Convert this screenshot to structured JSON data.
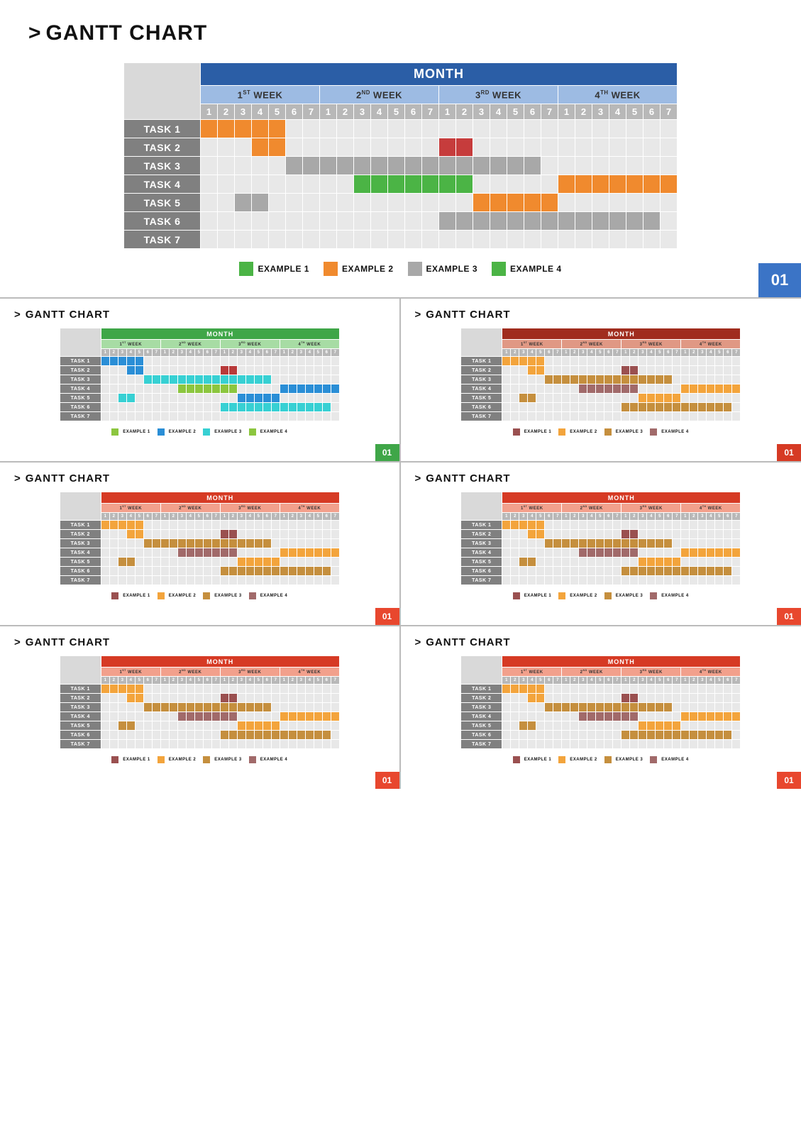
{
  "page_title": "GANTT CHART",
  "caret": ">",
  "month_label": "MONTH",
  "badge_label": "01",
  "task_labels": [
    "TASK 1",
    "TASK 2",
    "TASK 3",
    "TASK 4",
    "TASK 5",
    "TASK 6",
    "TASK 7"
  ],
  "weeks": [
    {
      "ord": "1",
      "sup": "ST",
      "label": "WEEK"
    },
    {
      "ord": "2",
      "sup": "ND",
      "label": "WEEK"
    },
    {
      "ord": "3",
      "sup": "RD",
      "label": "WEEK"
    },
    {
      "ord": "4",
      "sup": "TH",
      "label": "WEEK"
    }
  ],
  "days": [
    "1",
    "2",
    "3",
    "4",
    "5",
    "6",
    "7"
  ],
  "bars_pattern_A": {
    "rows": [
      [
        [
          1,
          5,
          "c2"
        ]
      ],
      [
        [
          4,
          5,
          "c2"
        ],
        [
          15,
          16,
          "c1"
        ]
      ],
      [
        [
          6,
          20,
          "c3"
        ]
      ],
      [
        [
          10,
          16,
          "c4"
        ],
        [
          22,
          28,
          "c2"
        ]
      ],
      [
        [
          3,
          4,
          "c3"
        ],
        [
          17,
          21,
          "c2"
        ]
      ],
      [
        [
          15,
          27,
          "c3"
        ]
      ],
      []
    ]
  },
  "variants": {
    "main": {
      "month_header_bg": "#2b5ea6",
      "week_header_bg": "#9dbbe3",
      "day_header_bg": "#b8b8b8",
      "badge_bg": "#3b74c6",
      "colors": {
        "c1": "#c63c3c",
        "c2": "#f08a2e",
        "c3": "#a8a8a8",
        "c4": "#4bb445"
      },
      "legend_colors": [
        "#4bb445",
        "#f08a2e",
        "#a8a8a8",
        "#4bb445"
      ],
      "legend_labels": [
        "EXAMPLE 1",
        "EXAMPLE 2",
        "EXAMPLE 3",
        "EXAMPLE 4"
      ]
    },
    "green": {
      "month_header_bg": "#3fa648",
      "week_header_bg": "#a7dca4",
      "day_header_bg": "#b8b8b8",
      "badge_bg": "#3fa648",
      "colors": {
        "c1": "#b83a3a",
        "c2": "#2a8ed6",
        "c3": "#37d0d3",
        "c4": "#8cc63f"
      },
      "legend_colors": [
        "#8cc63f",
        "#2a8ed6",
        "#37d0d3",
        "#8cc63f"
      ],
      "legend_labels": [
        "EXAMPLE 1",
        "EXAMPLE 2",
        "EXAMPLE 3",
        "EXAMPLE 4"
      ]
    },
    "dark_red": {
      "month_header_bg": "#a02c1e",
      "week_header_bg": "#e09884",
      "day_header_bg": "#b8b8b8",
      "badge_bg": "#d63a24",
      "colors": {
        "c1": "#9a5050",
        "c2": "#f3a43c",
        "c3": "#c58f3e",
        "c4": "#a16a6a"
      },
      "legend_colors": [
        "#9a5050",
        "#f3a43c",
        "#c58f3e",
        "#a16a6a"
      ],
      "legend_labels": [
        "EXAMPLE 1",
        "EXAMPLE 2",
        "EXAMPLE 3",
        "EXAMPLE 4"
      ]
    },
    "red": {
      "month_header_bg": "#d63a24",
      "week_header_bg": "#f2a08c",
      "day_header_bg": "#b8b8b8",
      "badge_bg": "#e8472e",
      "colors": {
        "c1": "#9a5050",
        "c2": "#f3a43c",
        "c3": "#c58f3e",
        "c4": "#a16a6a"
      },
      "legend_colors": [
        "#9a5050",
        "#f3a43c",
        "#c58f3e",
        "#a16a6a"
      ],
      "legend_labels": [
        "EXAMPLE 1",
        "EXAMPLE 2",
        "EXAMPLE 3",
        "EXAMPLE 4"
      ]
    }
  },
  "thumbs_order": [
    "green",
    "dark_red",
    "red",
    "red",
    "red",
    "red"
  ]
}
